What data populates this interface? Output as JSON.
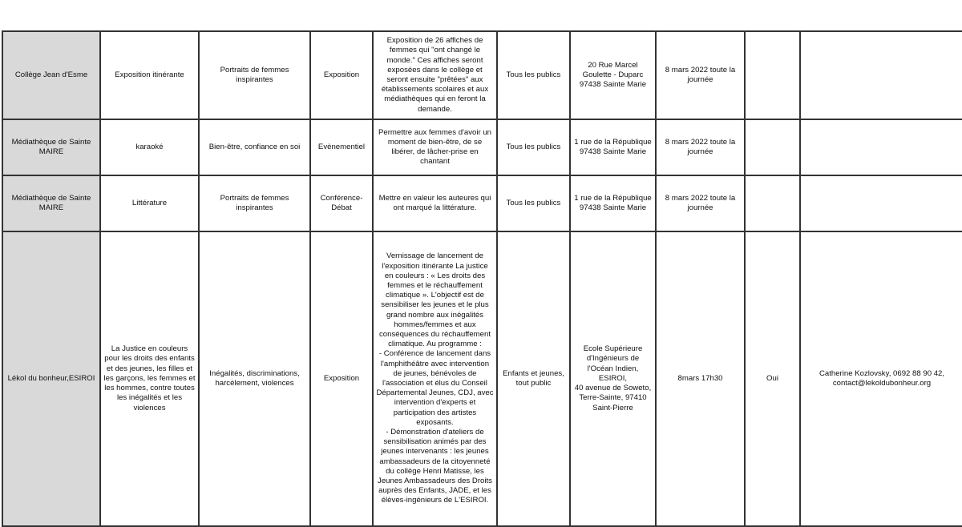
{
  "rows": [
    {
      "organisateur": "Collège Jean d'Esme",
      "titre": "Exposition itinérante",
      "theme": "Portraits de femmes\ninspirantes",
      "type": "Exposition",
      "description": "Exposition de 26 affiches de\nfemmes qui \"ont changé le\nmonde.\" Ces affiches seront\nexposées dans le collège et\nseront ensuite \"prêtées\" aux\nétablissements scolaires et aux\nmédiathèques qui en feront la\ndemande.",
      "public": "Tous les publics",
      "lieu": "20 Rue Marcel\nGoulette - Duparc\n97438 Sainte Marie",
      "date": "8 mars 2022 toute la\njournée",
      "inscription": "",
      "contact": ""
    },
    {
      "organisateur": "Médiathèque de Sainte\nMAIRE",
      "titre": "karaoké",
      "theme": "Bien-être, confiance en soi",
      "type": "Evènementiel",
      "description": "Permettre aux femmes d'avoir un\nmoment de bien-être, de se\nlibérer, de lâcher-prise en\nchantant",
      "public": "Tous les publics",
      "lieu": "1 rue de la République\n97438 Sainte Marie",
      "date": "8 mars 2022 toute la\njournée",
      "inscription": "",
      "contact": ""
    },
    {
      "organisateur": "Médiathèque de Sainte\nMAIRE",
      "titre": "Littérature",
      "theme": "Portraits de femmes\ninspirantes",
      "type": "Conférence-\nDébat",
      "description": "Mettre en valeur les auteures qui\nont marqué la littérature.",
      "public": "Tous les publics",
      "lieu": "1 rue de la République\n97438 Sainte Marie",
      "date": "8 mars 2022 toute la\njournée",
      "inscription": "",
      "contact": ""
    },
    {
      "organisateur": "Lékol du bonheur,ESIROI",
      "titre": "La Justice en couleurs\npour les droits des enfants\net des jeunes, les filles et\nles garçons, les femmes et\nles hommes, contre toutes\nles inégalités et les\nviolences",
      "theme": "Inégalités, discriminations,\nharcèlement, violences",
      "type": "Exposition",
      "description": "Vernissage de lancement de\nl'exposition itinérante La justice\nen couleurs : « Les droits des\nfemmes et le réchauffement\nclimatique ». L'objectif est de\nsensibiliser les jeunes et le plus\ngrand nombre aux inégalités\nhommes/femmes et aux\nconséquences du réchauffement\nclimatique. Au programme :\n- Conférence de lancement dans\nl'amphithéâtre avec intervention\nde jeunes, bénévoles de\nl'association et élus du Conseil\nDépartemental Jeunes, CDJ, avec\nintervention d'experts et\nparticipation des artistes\nexposants.\n- Démonstration d'ateliers de\nsensibilisation animés par des\njeunes intervenants : les jeunes\nambassadeurs de la citoyenneté\ndu collège Henri Matisse, les\nJeunes Ambassadeurs des Droits\nauprès des Enfants, JADE, et les\nélèves-ingénieurs de L'ESIROI.",
      "public": "Enfants et jeunes,\ntout public",
      "lieu": "Ecole Supérieure\nd'Ingénieurs de\nl'Océan Indien, ESIROI,\n40 avenue de Soweto,\nTerre-Sainte, 97410\nSaint-Pierre",
      "date": "8mars 17h30",
      "inscription": "Oui",
      "contact": "Catherine Kozlovsky, 0692 88 90 42,\ncontact@lekoldubonheur.org"
    }
  ]
}
